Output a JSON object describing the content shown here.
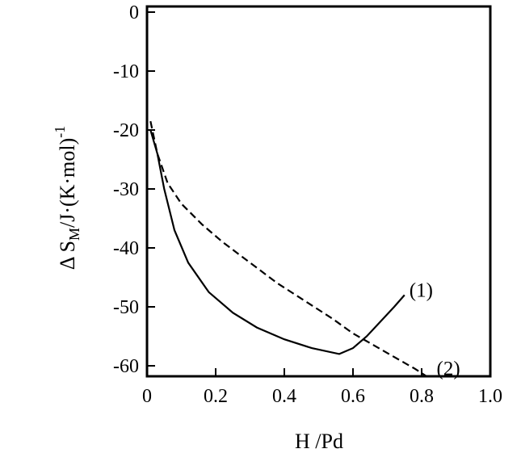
{
  "chart_data": {
    "type": "line",
    "title": "",
    "xlabel": "H /Pd",
    "ylabel_parts": {
      "main": "Δ S",
      "sub": "M",
      "rest": "/J·(K·mol)",
      "sup": "-1"
    },
    "xlim": [
      0,
      1.0
    ],
    "ylim": [
      -62,
      0
    ],
    "x_ticks": [
      0,
      0.2,
      0.4,
      0.6,
      0.8,
      1.0
    ],
    "x_tick_labels": [
      "0",
      "0.2",
      "0.4",
      "0.6",
      "0.8",
      "1.0"
    ],
    "y_ticks": [
      0,
      -10,
      -20,
      -30,
      -40,
      -50,
      -60
    ],
    "y_tick_labels": [
      "0",
      "-10",
      "-20",
      "-30",
      "-40",
      "-50",
      "-60"
    ],
    "grid": false,
    "series": [
      {
        "name": "(1)",
        "style": "solid",
        "x": [
          0.01,
          0.03,
          0.05,
          0.08,
          0.12,
          0.18,
          0.25,
          0.32,
          0.4,
          0.48,
          0.56,
          0.6,
          0.64,
          0.68,
          0.72,
          0.75
        ],
        "y": [
          -20,
          -24,
          -30,
          -37,
          -42.5,
          -47.5,
          -51,
          -53.5,
          -55.5,
          -57,
          -58,
          -57,
          -55,
          -52.5,
          -50,
          -48
        ]
      },
      {
        "name": "(2)",
        "style": "dashed",
        "x": [
          0.01,
          0.03,
          0.06,
          0.1,
          0.16,
          0.22,
          0.3,
          0.38,
          0.46,
          0.54,
          0.6,
          0.66,
          0.72,
          0.78,
          0.82
        ],
        "y": [
          -18.5,
          -24,
          -29,
          -32.5,
          -36,
          -39,
          -42.5,
          -46,
          -49,
          -52,
          -54.5,
          -56.5,
          -58.5,
          -60.5,
          -62
        ]
      }
    ]
  }
}
